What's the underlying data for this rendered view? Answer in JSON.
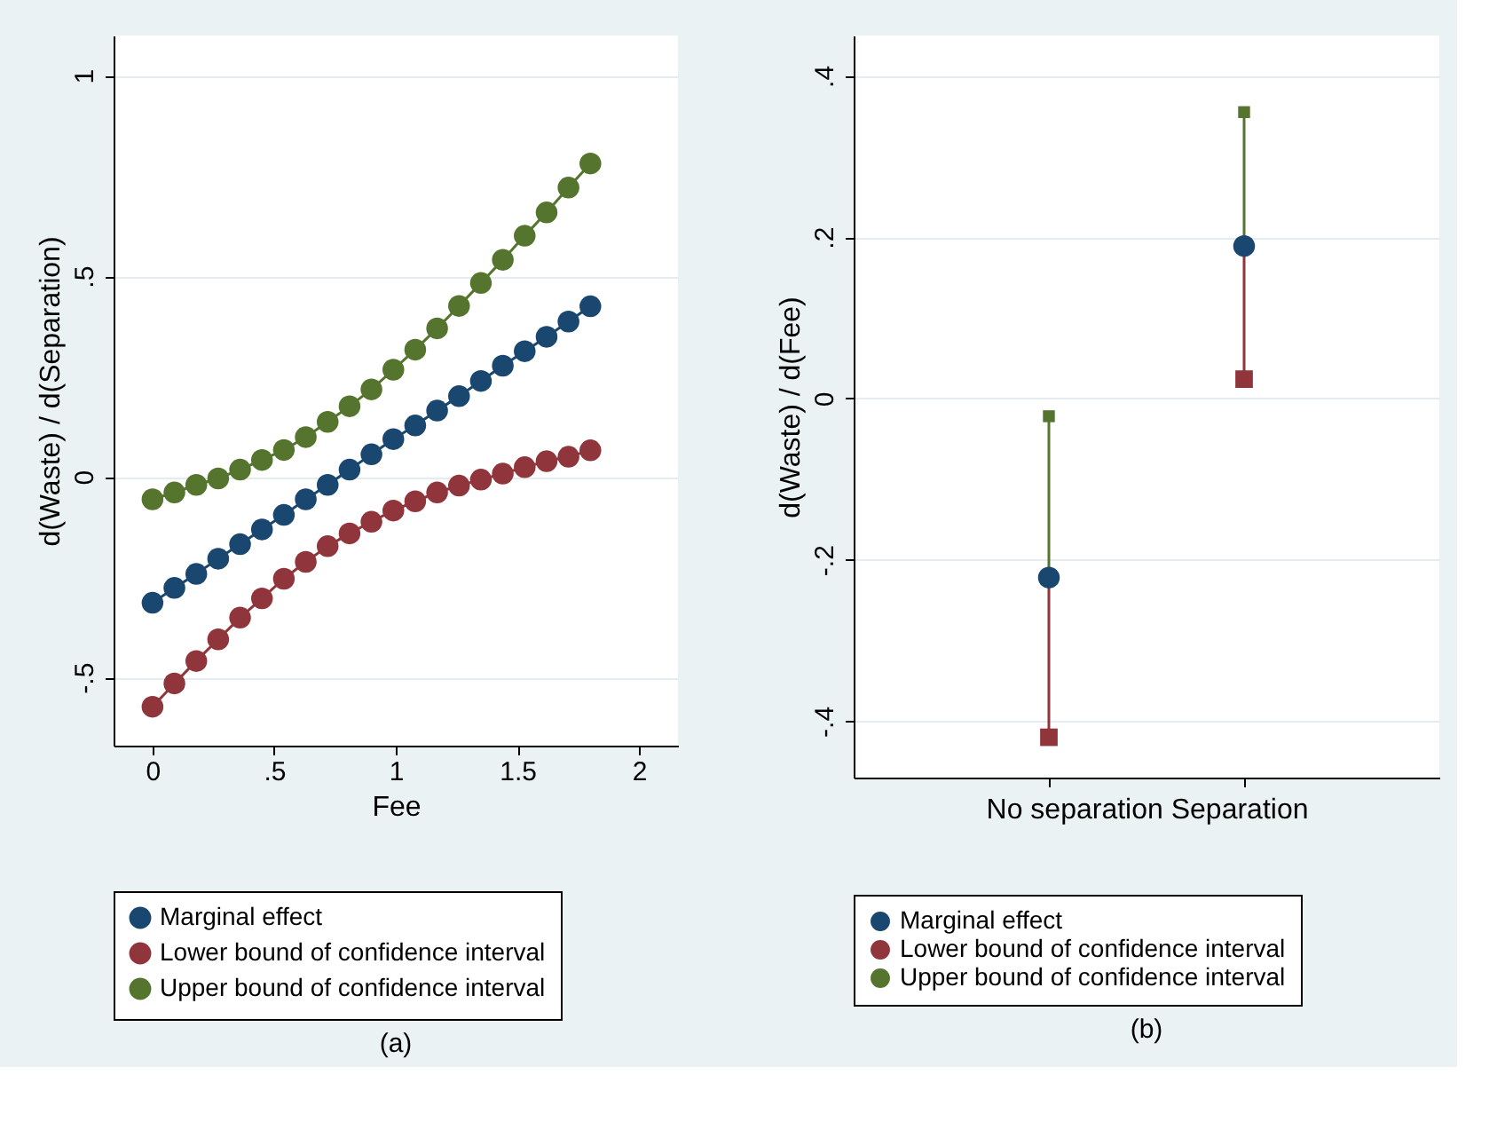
{
  "chart_data": [
    {
      "type": "line",
      "xlabel": "Fee",
      "ylabel": "d(Waste) / d(Separation)",
      "x": [
        0,
        0.09,
        0.18,
        0.27,
        0.36,
        0.45,
        0.54,
        0.63,
        0.72,
        0.81,
        0.9,
        0.99,
        1.08,
        1.17,
        1.26,
        1.35,
        1.44,
        1.53,
        1.62,
        1.71,
        1.8
      ],
      "series": [
        {
          "name": "Marginal effect",
          "color": "#1a476f",
          "values": [
            -0.314,
            -0.277,
            -0.242,
            -0.204,
            -0.168,
            -0.131,
            -0.095,
            -0.056,
            -0.02,
            0.018,
            0.056,
            0.094,
            0.128,
            0.165,
            0.201,
            0.239,
            0.277,
            0.313,
            0.349,
            0.387,
            0.425
          ]
        },
        {
          "name": "Lower bound of confidence interval",
          "color": "#90353b",
          "values": [
            -0.573,
            -0.515,
            -0.459,
            -0.405,
            -0.351,
            -0.303,
            -0.254,
            -0.212,
            -0.173,
            -0.141,
            -0.112,
            -0.084,
            -0.061,
            -0.039,
            -0.022,
            -0.007,
            0.008,
            0.024,
            0.039,
            0.05,
            0.066
          ]
        },
        {
          "name": "Upper bound of confidence interval",
          "color": "#55752f",
          "values": [
            -0.056,
            -0.039,
            -0.02,
            -0.004,
            0.018,
            0.042,
            0.067,
            0.099,
            0.137,
            0.176,
            0.218,
            0.267,
            0.317,
            0.37,
            0.426,
            0.483,
            0.541,
            0.601,
            0.659,
            0.721,
            0.781
          ]
        }
      ],
      "xlim": [
        -0.16,
        2.16
      ],
      "xticks": [
        0,
        {
          "value": 0.5,
          "label": ".5"
        },
        1,
        1.5,
        2
      ],
      "ylim": [
        -0.67,
        1.1
      ],
      "yticks": [
        {
          "value": -0.5,
          "label": "-.5"
        },
        0,
        {
          "value": 0.5,
          "label": ".5"
        },
        1
      ],
      "grid": "y",
      "legend": "bottom",
      "marker": "circle",
      "annotations": [
        "(a)"
      ]
    },
    {
      "type": "scatter",
      "xlabel": "No separation Separation",
      "ylabel": "d(Waste) / d(Fee)",
      "categories": [
        null,
        null
      ],
      "series": [
        {
          "name": "Marginal effect",
          "color": "#1a476f",
          "marker": "circle",
          "values": [
            -0.222,
            0.189
          ]
        },
        {
          "name": "Lower bound of confidence interval",
          "color": "#90353b",
          "marker": "square",
          "values": [
            -0.42,
            0.024
          ]
        },
        {
          "name": "Upper bound of confidence interval",
          "color": "#55752f",
          "marker": "square",
          "values": [
            -0.022,
            0.355
          ]
        }
      ],
      "ylim": [
        -0.47,
        0.45
      ],
      "yticks": [
        {
          "value": -0.4,
          "label": "-.4"
        },
        {
          "value": -0.2,
          "label": "-.2"
        },
        0,
        {
          "value": 0.2,
          "label": ".2"
        },
        {
          "value": 0.4,
          "label": ".4"
        }
      ],
      "grid": "y",
      "legend": "bottom",
      "annotations": [
        "(b)"
      ]
    }
  ]
}
